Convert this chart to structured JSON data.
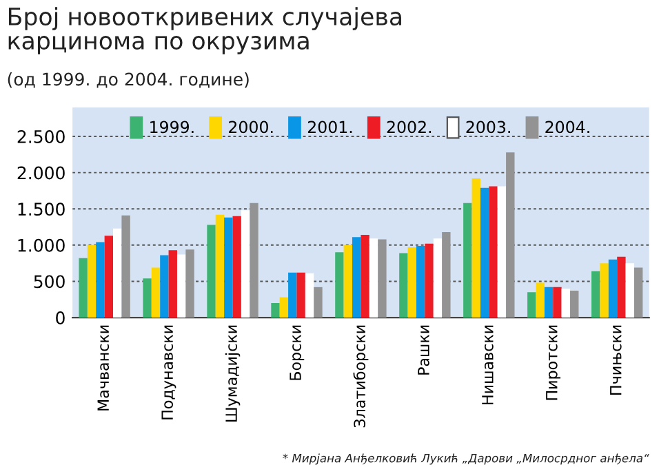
{
  "chart_data": {
    "type": "bar",
    "title": "Број новооткривених случајева\nкарцинома по окрузима",
    "subtitle": "(од 1999. до 2004. године)",
    "categories": [
      "Мачвански",
      "Подунавски",
      "Шумадијски",
      "Борски",
      "Златиборски",
      "Рашки",
      "Нишавски",
      "Пиротски",
      "Пчињски"
    ],
    "series": [
      {
        "name": "1999.",
        "color": "#3cb371",
        "values": [
          820,
          540,
          1280,
          200,
          900,
          890,
          1580,
          350,
          640
        ]
      },
      {
        "name": "2000.",
        "color": "#ffd700",
        "values": [
          1000,
          690,
          1420,
          280,
          1000,
          970,
          1920,
          480,
          750
        ]
      },
      {
        "name": "2001.",
        "color": "#0a96e6",
        "values": [
          1040,
          860,
          1380,
          620,
          1110,
          990,
          1790,
          420,
          800
        ]
      },
      {
        "name": "2002.",
        "color": "#ee1c25",
        "values": [
          1130,
          930,
          1400,
          620,
          1140,
          1020,
          1810,
          420,
          840
        ]
      },
      {
        "name": "2003.",
        "color": "#ffffff",
        "values": [
          1230,
          870,
          1480,
          610,
          1090,
          1090,
          1810,
          400,
          750
        ]
      },
      {
        "name": "2004.",
        "color": "#939393",
        "values": [
          1410,
          940,
          1580,
          420,
          1080,
          1180,
          2280,
          370,
          690
        ]
      }
    ],
    "ylim": [
      0,
      2900
    ],
    "yticks": [
      0,
      500,
      {
        "value": 1000,
        "label": "1.000"
      },
      {
        "value": 1500,
        "label": "1.500"
      },
      {
        "value": 2000,
        "label": "2.000"
      },
      {
        "value": 2500,
        "label": "2.500"
      }
    ],
    "grid": "y",
    "legend": "top",
    "annotations": [
      "* Мирјана Анђелковић Лукић „Дарови „Милосрдног анђела“"
    ]
  }
}
